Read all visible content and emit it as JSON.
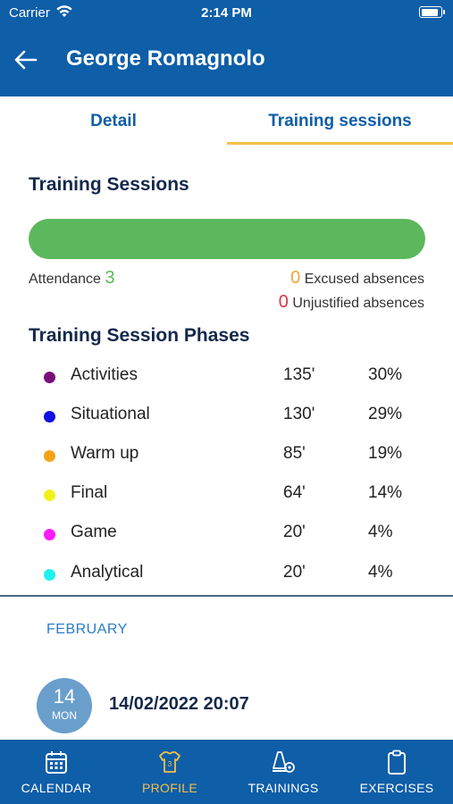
{
  "status": {
    "carrier": "Carrier",
    "time": "2:14 PM"
  },
  "header": {
    "title": "George Romagnolo"
  },
  "tabs": [
    {
      "label": "Detail",
      "active": false
    },
    {
      "label": "Training sessions",
      "active": true
    }
  ],
  "training_sessions": {
    "heading": "Training Sessions",
    "attendance_fraction": 1.0,
    "attendance_label": "Attendance",
    "attendance_count": "3",
    "excused_count": "0",
    "excused_label": "Excused absences",
    "unjustified_count": "0",
    "unjustified_label": "Unjustified absences"
  },
  "phases": {
    "heading": "Training Session Phases",
    "items": [
      {
        "name": "Activities",
        "minutes": "135'",
        "percent": "30%",
        "color": "#7a0f7a"
      },
      {
        "name": "Situational",
        "minutes": "130'",
        "percent": "29%",
        "color": "#1010e0"
      },
      {
        "name": "Warm up",
        "minutes": "85'",
        "percent": "19%",
        "color": "#f5a21a"
      },
      {
        "name": "Final",
        "minutes": "64'",
        "percent": "14%",
        "color": "#f2f21a"
      },
      {
        "name": "Game",
        "minutes": "20'",
        "percent": "4%",
        "color": "#ff1aff"
      },
      {
        "name": "Analytical",
        "minutes": "20'",
        "percent": "4%",
        "color": "#1ff0f0"
      }
    ]
  },
  "sessions": {
    "month": "FEBRUARY",
    "items": [
      {
        "day": "14",
        "weekday": "MON",
        "datetime": "14/02/2022 20:07"
      }
    ]
  },
  "bottom_nav": [
    {
      "label": "CALENDAR",
      "active": false,
      "icon": "calendar-icon"
    },
    {
      "label": "PROFILE",
      "active": true,
      "icon": "jersey-icon"
    },
    {
      "label": "TRAININGS",
      "active": false,
      "icon": "cone-ball-icon"
    },
    {
      "label": "EXERCISES",
      "active": false,
      "icon": "clipboard-icon"
    }
  ],
  "colors": {
    "primary": "#0e5ea8",
    "accent": "#f2c04a",
    "attendance": "#5cb85c",
    "excused": "#f1a43b",
    "unjustified": "#dc3545"
  }
}
